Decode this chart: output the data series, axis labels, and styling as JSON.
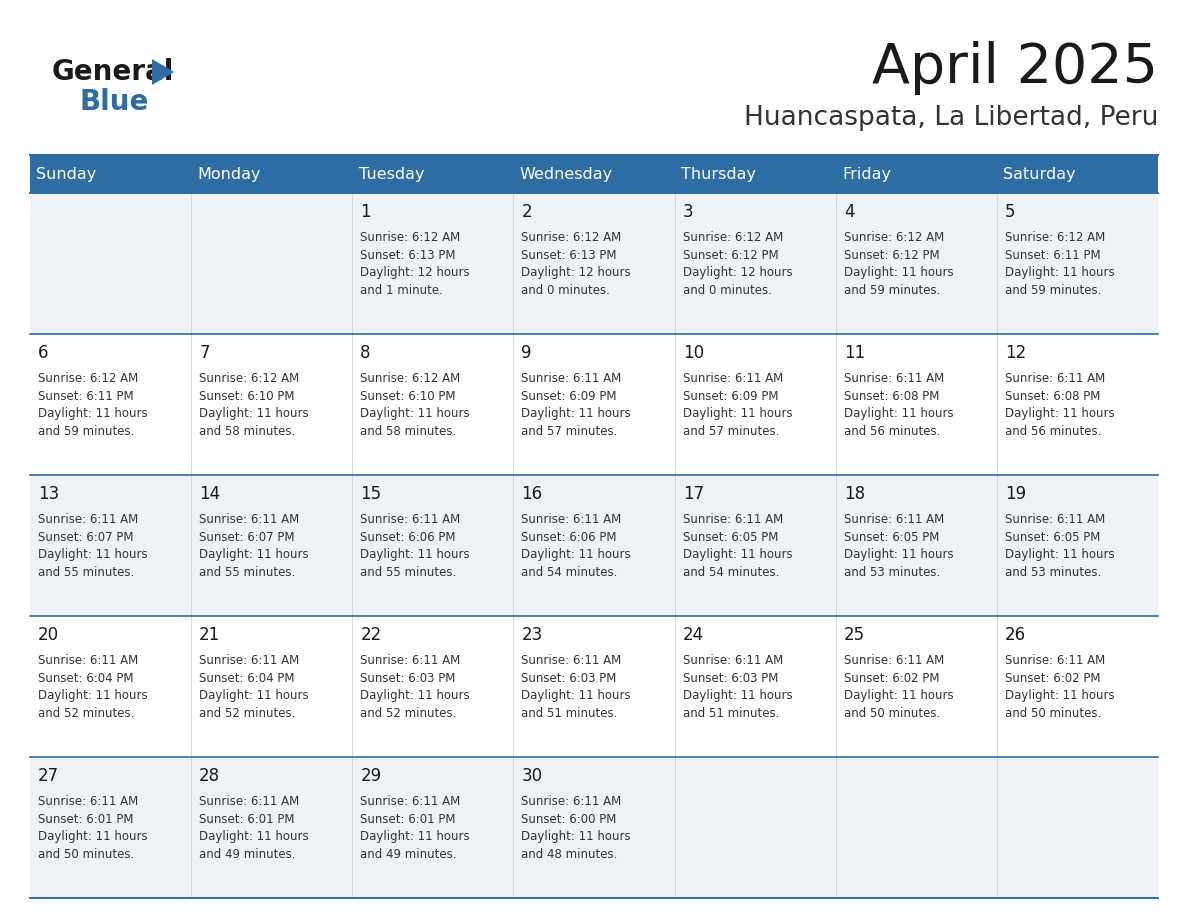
{
  "title": "April 2025",
  "subtitle": "Huancaspata, La Libertad, Peru",
  "days_of_week": [
    "Sunday",
    "Monday",
    "Tuesday",
    "Wednesday",
    "Thursday",
    "Friday",
    "Saturday"
  ],
  "header_bg": "#2e6da4",
  "header_text": "#ffffff",
  "row_bg_light": "#eef2f7",
  "row_bg_white": "#ffffff",
  "border_color": "#2e6da4",
  "title_color": "#1a1a1a",
  "subtitle_color": "#333333",
  "day_num_color": "#1a1a1a",
  "cell_text_color": "#333333",
  "logo_black": "#1a1a1a",
  "logo_blue": "#2e6da4",
  "calendar_data": [
    [
      {
        "day": null,
        "info": null
      },
      {
        "day": null,
        "info": null
      },
      {
        "day": 1,
        "info": "Sunrise: 6:12 AM\nSunset: 6:13 PM\nDaylight: 12 hours\nand 1 minute."
      },
      {
        "day": 2,
        "info": "Sunrise: 6:12 AM\nSunset: 6:13 PM\nDaylight: 12 hours\nand 0 minutes."
      },
      {
        "day": 3,
        "info": "Sunrise: 6:12 AM\nSunset: 6:12 PM\nDaylight: 12 hours\nand 0 minutes."
      },
      {
        "day": 4,
        "info": "Sunrise: 6:12 AM\nSunset: 6:12 PM\nDaylight: 11 hours\nand 59 minutes."
      },
      {
        "day": 5,
        "info": "Sunrise: 6:12 AM\nSunset: 6:11 PM\nDaylight: 11 hours\nand 59 minutes."
      }
    ],
    [
      {
        "day": 6,
        "info": "Sunrise: 6:12 AM\nSunset: 6:11 PM\nDaylight: 11 hours\nand 59 minutes."
      },
      {
        "day": 7,
        "info": "Sunrise: 6:12 AM\nSunset: 6:10 PM\nDaylight: 11 hours\nand 58 minutes."
      },
      {
        "day": 8,
        "info": "Sunrise: 6:12 AM\nSunset: 6:10 PM\nDaylight: 11 hours\nand 58 minutes."
      },
      {
        "day": 9,
        "info": "Sunrise: 6:11 AM\nSunset: 6:09 PM\nDaylight: 11 hours\nand 57 minutes."
      },
      {
        "day": 10,
        "info": "Sunrise: 6:11 AM\nSunset: 6:09 PM\nDaylight: 11 hours\nand 57 minutes."
      },
      {
        "day": 11,
        "info": "Sunrise: 6:11 AM\nSunset: 6:08 PM\nDaylight: 11 hours\nand 56 minutes."
      },
      {
        "day": 12,
        "info": "Sunrise: 6:11 AM\nSunset: 6:08 PM\nDaylight: 11 hours\nand 56 minutes."
      }
    ],
    [
      {
        "day": 13,
        "info": "Sunrise: 6:11 AM\nSunset: 6:07 PM\nDaylight: 11 hours\nand 55 minutes."
      },
      {
        "day": 14,
        "info": "Sunrise: 6:11 AM\nSunset: 6:07 PM\nDaylight: 11 hours\nand 55 minutes."
      },
      {
        "day": 15,
        "info": "Sunrise: 6:11 AM\nSunset: 6:06 PM\nDaylight: 11 hours\nand 55 minutes."
      },
      {
        "day": 16,
        "info": "Sunrise: 6:11 AM\nSunset: 6:06 PM\nDaylight: 11 hours\nand 54 minutes."
      },
      {
        "day": 17,
        "info": "Sunrise: 6:11 AM\nSunset: 6:05 PM\nDaylight: 11 hours\nand 54 minutes."
      },
      {
        "day": 18,
        "info": "Sunrise: 6:11 AM\nSunset: 6:05 PM\nDaylight: 11 hours\nand 53 minutes."
      },
      {
        "day": 19,
        "info": "Sunrise: 6:11 AM\nSunset: 6:05 PM\nDaylight: 11 hours\nand 53 minutes."
      }
    ],
    [
      {
        "day": 20,
        "info": "Sunrise: 6:11 AM\nSunset: 6:04 PM\nDaylight: 11 hours\nand 52 minutes."
      },
      {
        "day": 21,
        "info": "Sunrise: 6:11 AM\nSunset: 6:04 PM\nDaylight: 11 hours\nand 52 minutes."
      },
      {
        "day": 22,
        "info": "Sunrise: 6:11 AM\nSunset: 6:03 PM\nDaylight: 11 hours\nand 52 minutes."
      },
      {
        "day": 23,
        "info": "Sunrise: 6:11 AM\nSunset: 6:03 PM\nDaylight: 11 hours\nand 51 minutes."
      },
      {
        "day": 24,
        "info": "Sunrise: 6:11 AM\nSunset: 6:03 PM\nDaylight: 11 hours\nand 51 minutes."
      },
      {
        "day": 25,
        "info": "Sunrise: 6:11 AM\nSunset: 6:02 PM\nDaylight: 11 hours\nand 50 minutes."
      },
      {
        "day": 26,
        "info": "Sunrise: 6:11 AM\nSunset: 6:02 PM\nDaylight: 11 hours\nand 50 minutes."
      }
    ],
    [
      {
        "day": 27,
        "info": "Sunrise: 6:11 AM\nSunset: 6:01 PM\nDaylight: 11 hours\nand 50 minutes."
      },
      {
        "day": 28,
        "info": "Sunrise: 6:11 AM\nSunset: 6:01 PM\nDaylight: 11 hours\nand 49 minutes."
      },
      {
        "day": 29,
        "info": "Sunrise: 6:11 AM\nSunset: 6:01 PM\nDaylight: 11 hours\nand 49 minutes."
      },
      {
        "day": 30,
        "info": "Sunrise: 6:11 AM\nSunset: 6:00 PM\nDaylight: 11 hours\nand 48 minutes."
      },
      {
        "day": null,
        "info": null
      },
      {
        "day": null,
        "info": null
      },
      {
        "day": null,
        "info": null
      }
    ]
  ]
}
